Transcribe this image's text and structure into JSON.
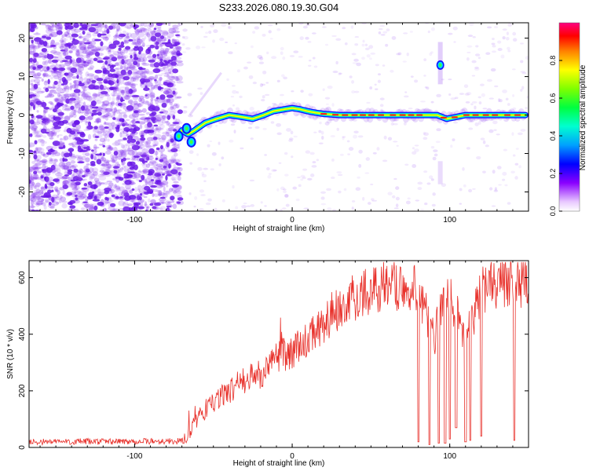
{
  "title": "S233.2026.080.19.30.G04",
  "colors": {
    "snr_line": "#e8302a",
    "spectral_blob": "#8a3cf0",
    "axis": "#000000"
  },
  "chart_data": [
    {
      "type": "heatmap",
      "title": "",
      "xlabel": "Height of straight line (km)",
      "ylabel": "Frequency (Hz)",
      "xlim": [
        -167,
        150
      ],
      "ylim": [
        -25,
        24
      ],
      "xticks": [
        -100,
        0,
        100
      ],
      "yticks": [
        -20,
        -10,
        0,
        10,
        20
      ],
      "colorbar": {
        "label": "Normalized spectral amplitude",
        "range": [
          0,
          1
        ],
        "ticks": [
          "0.0",
          "0.2",
          "0.4",
          "0.6",
          "0.8"
        ]
      },
      "trace": {
        "x": [
          -73,
          -70,
          -66,
          -62,
          -55,
          -48,
          -40,
          -32,
          -25,
          -18,
          -12,
          -5,
          0,
          5,
          12,
          20,
          30,
          45,
          60,
          75,
          85,
          92,
          98,
          110,
          125,
          148
        ],
        "y": [
          -6,
          -4,
          -5,
          -4,
          -2,
          -1,
          0,
          -0.5,
          -1,
          0,
          1,
          1.5,
          1.8,
          1.5,
          0.8,
          0.3,
          0,
          0,
          0,
          0,
          0,
          0,
          -1,
          0,
          0,
          0
        ]
      },
      "spot": {
        "x": 94,
        "y": 13
      }
    },
    {
      "type": "line",
      "title": "",
      "xlabel": "Height of straight line (km)",
      "ylabel": "SNR (10 * v/v)",
      "xlim": [
        -167,
        150
      ],
      "ylim": [
        0,
        660
      ],
      "xticks": [
        -100,
        0,
        100
      ],
      "yticks": [
        0,
        200,
        400,
        600
      ],
      "series": [
        {
          "envelope_x": [
            -167,
            -69,
            -66,
            -60,
            -50,
            -40,
            -30,
            -20,
            -10,
            0,
            10,
            20,
            30,
            45,
            60,
            75,
            80,
            85,
            90,
            95,
            100,
            105,
            110,
            120,
            130,
            150
          ],
          "envelope_y": [
            20,
            22,
            40,
            110,
            160,
            200,
            240,
            260,
            320,
            340,
            380,
            440,
            500,
            550,
            570,
            575,
            570,
            470,
            380,
            500,
            540,
            460,
            380,
            560,
            580,
            575
          ],
          "dips_x": [
            80,
            87,
            93,
            97,
            100,
            104,
            110,
            113,
            120,
            141
          ],
          "dips_y": [
            20,
            10,
            15,
            15,
            30,
            70,
            20,
            25,
            40,
            25
          ]
        }
      ]
    }
  ]
}
